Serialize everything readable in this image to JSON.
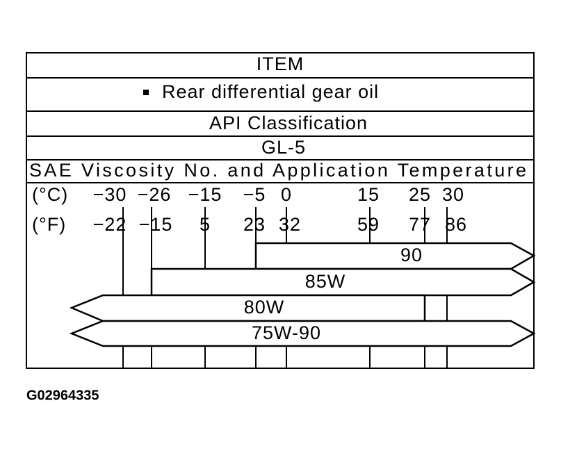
{
  "table": {
    "rows": [
      "ITEM",
      "Rear differential gear oil",
      "API Classification",
      "GL-5",
      "SAE Viscosity No. and Application Temperature"
    ]
  },
  "scale": {
    "celsius_label": "(°C)",
    "fahrenheit_label": "(°F)",
    "celsius": [
      "−30",
      "−26",
      "−15",
      "−5",
      "0",
      "15",
      "25",
      "30"
    ],
    "fahrenheit": [
      "−22",
      "−15",
      "5",
      "23",
      "32",
      "59",
      "77",
      "86"
    ]
  },
  "grades": [
    "90",
    "85W",
    "80W",
    "75W-90"
  ],
  "figure_id": "G02964335"
}
